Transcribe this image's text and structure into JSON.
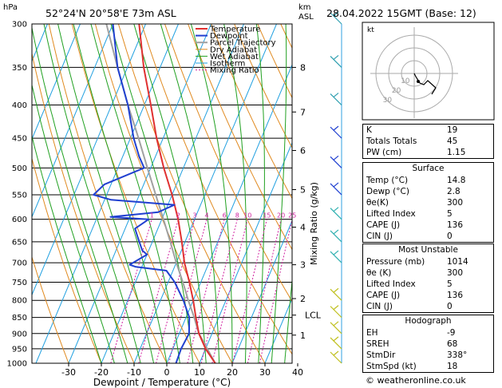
{
  "header": {
    "location": "52°24'N  20°58'E  73m  ASL",
    "datetime": "28.04.2022  15GMT  (Base: 12)",
    "hpa_label": "hPa",
    "km_label": "km",
    "asl_label": "ASL"
  },
  "legend": [
    "Temperature",
    "Dewpoint",
    "Parcel Trajectory",
    "Dry Adiabat",
    "Wet Adiabat",
    "Isotherm",
    "Mixing Ratio"
  ],
  "colors": {
    "temperature": "#e03030",
    "dewpoint": "#2040d0",
    "parcel": "#a0a0a0",
    "dry_adiabat": "#e08a20",
    "wet_adiabat": "#20a020",
    "isotherm": "#20a0e0",
    "mixing_ratio": "#d020a0"
  },
  "chart_data": {
    "type": "skew-t",
    "xlabel": "Dewpoint / Temperature (°C)",
    "ylabel_right": "Mixing Ratio (g/kg)",
    "x_ticks": [
      -30,
      -20,
      -10,
      0,
      10,
      20,
      30,
      40
    ],
    "pressure_levels": [
      300,
      350,
      400,
      450,
      500,
      550,
      600,
      650,
      700,
      750,
      800,
      850,
      900,
      950,
      1000
    ],
    "xlim": [
      -40,
      40
    ],
    "plim": [
      300,
      1000
    ],
    "height_km_labels": [
      {
        "label": "8",
        "p": 350
      },
      {
        "label": "7",
        "p": 410
      },
      {
        "label": "6",
        "p": 470
      },
      {
        "label": "5",
        "p": 540
      },
      {
        "label": "4",
        "p": 617
      },
      {
        "label": "3",
        "p": 705
      },
      {
        "label": "2",
        "p": 795
      },
      {
        "label": "1",
        "p": 905
      },
      {
        "label": "LCL",
        "p": 843
      }
    ],
    "mixing_ratio_labels": [
      "1",
      "2",
      "3",
      "4",
      "6",
      "8",
      "10",
      "15",
      "20",
      "25"
    ],
    "temperature": [
      [
        1000,
        14.8
      ],
      [
        950,
        10
      ],
      [
        900,
        6
      ],
      [
        850,
        3
      ],
      [
        800,
        0
      ],
      [
        750,
        -3.5
      ],
      [
        700,
        -7.5
      ],
      [
        650,
        -11
      ],
      [
        600,
        -15
      ],
      [
        550,
        -20
      ],
      [
        500,
        -26
      ],
      [
        450,
        -32
      ],
      [
        400,
        -38
      ],
      [
        350,
        -45
      ],
      [
        300,
        -52
      ]
    ],
    "dewpoint": [
      [
        1000,
        2.8
      ],
      [
        950,
        2.5
      ],
      [
        900,
        3
      ],
      [
        850,
        1
      ],
      [
        800,
        -3
      ],
      [
        750,
        -8
      ],
      [
        720,
        -12
      ],
      [
        710,
        -22
      ],
      [
        705,
        -24
      ],
      [
        680,
        -20
      ],
      [
        670,
        -22
      ],
      [
        640,
        -25
      ],
      [
        620,
        -27
      ],
      [
        600,
        -24
      ],
      [
        595,
        -36
      ],
      [
        585,
        -22
      ],
      [
        570,
        -18
      ],
      [
        560,
        -38
      ],
      [
        550,
        -44
      ],
      [
        530,
        -42
      ],
      [
        500,
        -32
      ],
      [
        480,
        -35
      ],
      [
        450,
        -39
      ],
      [
        400,
        -45
      ],
      [
        350,
        -53
      ],
      [
        300,
        -60
      ]
    ],
    "parcel": [
      [
        1000,
        14.8
      ],
      [
        950,
        10.5
      ],
      [
        900,
        6
      ],
      [
        850,
        2.5
      ],
      [
        800,
        -1.5
      ],
      [
        750,
        -5.5
      ],
      [
        700,
        -10
      ],
      [
        650,
        -14.5
      ],
      [
        600,
        -19.5
      ],
      [
        550,
        -25
      ],
      [
        500,
        -31
      ],
      [
        450,
        -37.5
      ],
      [
        400,
        -45
      ],
      [
        350,
        -53
      ],
      [
        300,
        -62
      ]
    ]
  },
  "indices": [
    {
      "label": "K",
      "value": "19"
    },
    {
      "label": "Totals Totals",
      "value": "45"
    },
    {
      "label": "PW (cm)",
      "value": "1.15"
    }
  ],
  "surface": {
    "title": "Surface",
    "rows": [
      {
        "label": "Temp (°C)",
        "value": "14.8"
      },
      {
        "label": "Dewp (°C)",
        "value": "2.8"
      },
      {
        "label": "θe(K)",
        "value": "300"
      },
      {
        "label": "Lifted Index",
        "value": "5"
      },
      {
        "label": "CAPE (J)",
        "value": "136"
      },
      {
        "label": "CIN (J)",
        "value": "0"
      }
    ]
  },
  "most_unstable": {
    "title": "Most Unstable",
    "rows": [
      {
        "label": "Pressure (mb)",
        "value": "1014"
      },
      {
        "label": "θe (K)",
        "value": "300"
      },
      {
        "label": "Lifted Index",
        "value": "5"
      },
      {
        "label": "CAPE (J)",
        "value": "136"
      },
      {
        "label": "CIN (J)",
        "value": "0"
      }
    ]
  },
  "hodograph": {
    "title": "Hodograph",
    "kt_label": "kt",
    "ring_labels": [
      "10",
      "20",
      "30"
    ],
    "rows": [
      {
        "label": "EH",
        "value": "-9"
      },
      {
        "label": "SREH",
        "value": "68"
      },
      {
        "label": "StmDir",
        "value": "338°"
      },
      {
        "label": "StmSpd (kt)",
        "value": "18"
      }
    ]
  },
  "footer": "© weatheronline.co.uk"
}
